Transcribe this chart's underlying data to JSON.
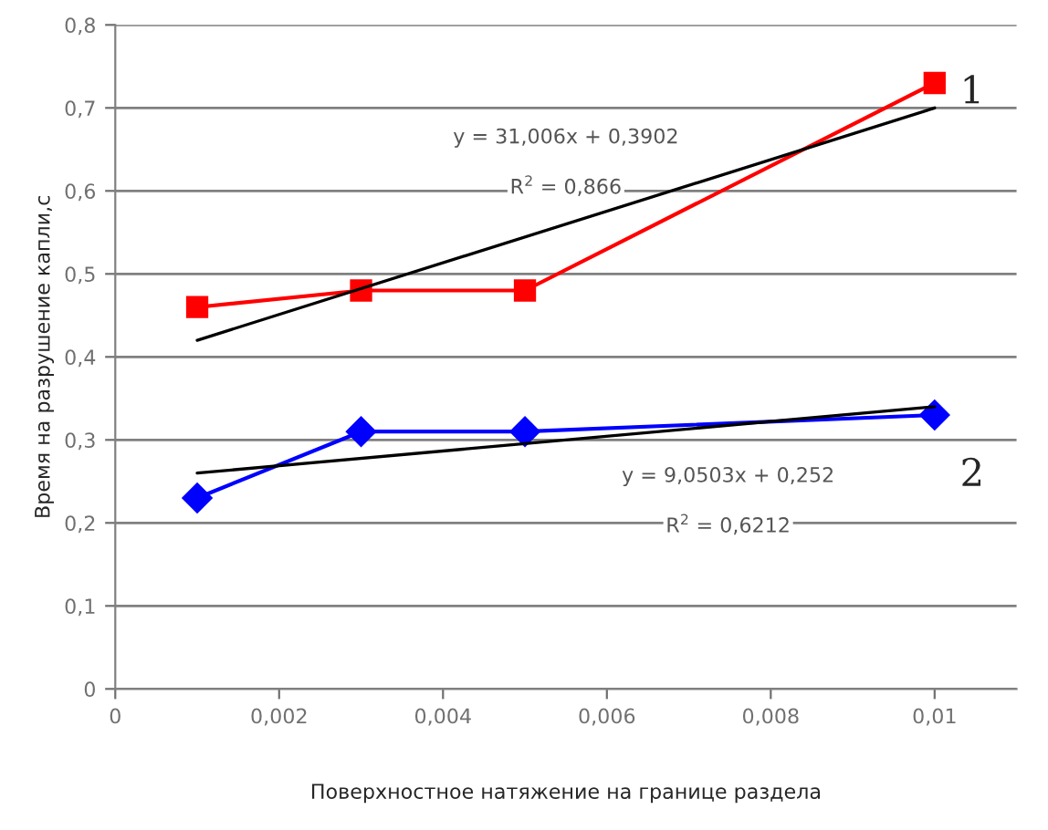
{
  "chart_data": {
    "type": "line",
    "xlabel": "Поверхностное натяжение на границе раздела",
    "ylabel": "Время на разрушение капли,с",
    "xlim": [
      0,
      0.011
    ],
    "xticks": [
      {
        "value": 0,
        "label": "0"
      },
      {
        "value": 0.002,
        "label": "0,002"
      },
      {
        "value": 0.004,
        "label": "0,004"
      },
      {
        "value": 0.006,
        "label": "0,006"
      },
      {
        "value": 0.008,
        "label": "0,008"
      },
      {
        "value": 0.01,
        "label": "0,01"
      }
    ],
    "ylim": [
      0,
      0.8
    ],
    "yticks": [
      {
        "value": 0,
        "label": "0"
      },
      {
        "value": 0.1,
        "label": "0,1"
      },
      {
        "value": 0.2,
        "label": "0,2"
      },
      {
        "value": 0.3,
        "label": "0,3"
      },
      {
        "value": 0.4,
        "label": "0,4"
      },
      {
        "value": 0.5,
        "label": "0,5"
      },
      {
        "value": 0.6,
        "label": "0,6"
      },
      {
        "value": 0.7,
        "label": "0,7"
      },
      {
        "value": 0.8,
        "label": "0,8"
      }
    ],
    "grid": "y",
    "legend": false,
    "series": [
      {
        "name": "1",
        "color": "#ff0000",
        "marker": "square",
        "x": [
          0.001,
          0.003,
          0.005,
          0.01
        ],
        "values": [
          0.46,
          0.48,
          0.48,
          0.73
        ]
      },
      {
        "color": "#000000",
        "marker": "none",
        "x": [
          0.001,
          0.01
        ],
        "values": [
          0.42,
          0.7
        ]
      },
      {
        "name": "2",
        "color": "#0000ff",
        "marker": "diamond",
        "x": [
          0.001,
          0.003,
          0.005,
          0.01
        ],
        "values": [
          0.23,
          0.31,
          0.31,
          0.33
        ]
      },
      {
        "color": "#000000",
        "marker": "none",
        "x": [
          0.001,
          0.01
        ],
        "values": [
          0.26,
          0.34
        ]
      }
    ],
    "annotations": [
      "y = 31,006x + 0,3902",
      "R$^{2}$ = 0,866",
      "y = 9,0503x + 0,252",
      "R$^{2}$ = 0,6212"
    ]
  }
}
